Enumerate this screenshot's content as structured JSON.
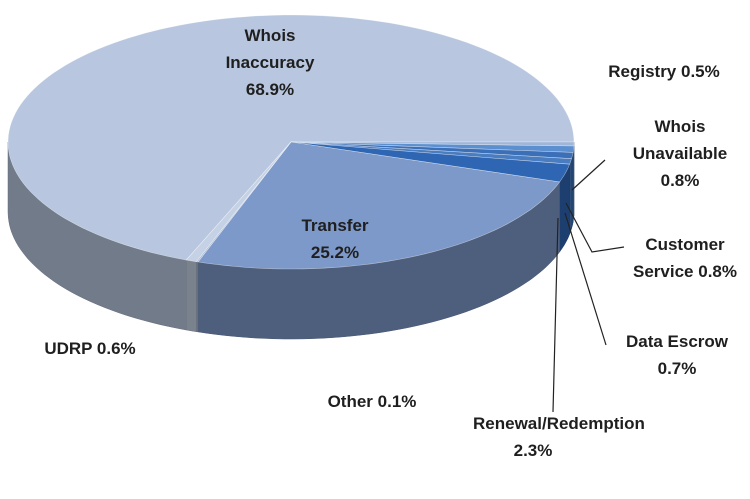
{
  "chart_data": {
    "type": "pie",
    "categories": [
      "Whois Inaccuracy",
      "Registry",
      "Whois Unavailable",
      "Customer Service",
      "Data Escrow",
      "Renewal/Redemption",
      "Transfer",
      "Other",
      "UDRP"
    ],
    "values": [
      68.9,
      0.5,
      0.8,
      0.8,
      0.7,
      2.3,
      25.2,
      0.1,
      0.6
    ],
    "value_labels": [
      "68.9%",
      "0.5%",
      "0.8%",
      "0.8%",
      "0.7%",
      "2.3%",
      "25.2%",
      "0.1%",
      "0.6%"
    ],
    "colors": [
      "#b8c7df",
      "#9fb6d8",
      "#5b8fd0",
      "#3b6fb8",
      "#4a7cc0",
      "#2f66b3",
      "#7d99c9",
      "#aab9d4",
      "#c5d1e5"
    ]
  }
}
